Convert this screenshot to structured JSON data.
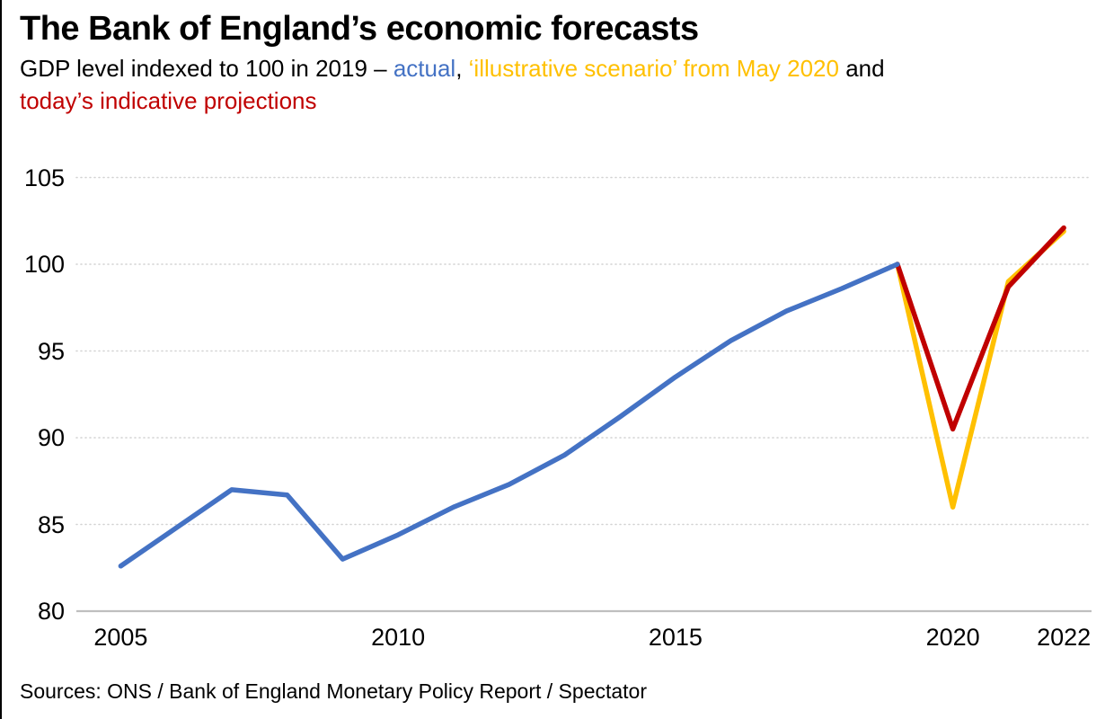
{
  "title": "The Bank of England’s economic forecasts",
  "subtitle": {
    "prefix": "GDP level indexed to 100 in 2019 – ",
    "actual_label": "actual",
    "comma": ", ",
    "scenario_label": "‘illustrative scenario’ from May 2020",
    "and_suffix": " and",
    "projections_label": "today’s indicative projections"
  },
  "footer": "Sources: ONS / Bank of England Monetary Policy Report / Spectator",
  "colors": {
    "actual": "#4472C4",
    "scenario": "#FFC000",
    "projection": "#C00000",
    "grid_dotted": "#D2D2D2",
    "axis_baseline": "#BFBFBF",
    "text": "#000000"
  },
  "chart_data": {
    "type": "line",
    "title": "The Bank of England’s economic forecasts",
    "subtitle_plain": "GDP level indexed to 100 in 2019 – actual, ‘illustrative scenario’ from May 2020 and today’s indicative projections",
    "xlabel": "",
    "ylabel": "GDP level indexed to 100 in 2019",
    "xlim": [
      2004.2,
      2022.5
    ],
    "ylim": [
      80,
      106.5
    ],
    "x_ticks": [
      2005,
      2010,
      2015,
      2020,
      2022
    ],
    "y_ticks": [
      105,
      100,
      95,
      90,
      85,
      80
    ],
    "grid": "horizontal-dotted, solid baseline at 80, no legend (legend encoded in subtitle colors)",
    "series": [
      {
        "name": "actual",
        "color": "#4472C4",
        "z_layer": 3,
        "x": [
          2005,
          2006,
          2007,
          2008,
          2009,
          2010,
          2011,
          2012,
          2013,
          2014,
          2015,
          2016,
          2017,
          2018,
          2019
        ],
        "y": [
          82.6,
          84.8,
          87.0,
          86.7,
          83.0,
          84.4,
          86.0,
          87.3,
          89.0,
          91.2,
          93.5,
          95.6,
          97.3,
          98.6,
          100
        ]
      },
      {
        "name": "illustrative scenario from May 2020",
        "color": "#FFC000",
        "z_layer": 1,
        "x": [
          2019,
          2020,
          2021,
          2022
        ],
        "y": [
          100,
          86.0,
          99.0,
          101.9
        ]
      },
      {
        "name": "today's indicative projections",
        "color": "#C00000",
        "z_layer": 2,
        "x": [
          2019,
          2020,
          2021,
          2022
        ],
        "y": [
          100,
          90.5,
          98.7,
          102.1
        ]
      }
    ]
  }
}
